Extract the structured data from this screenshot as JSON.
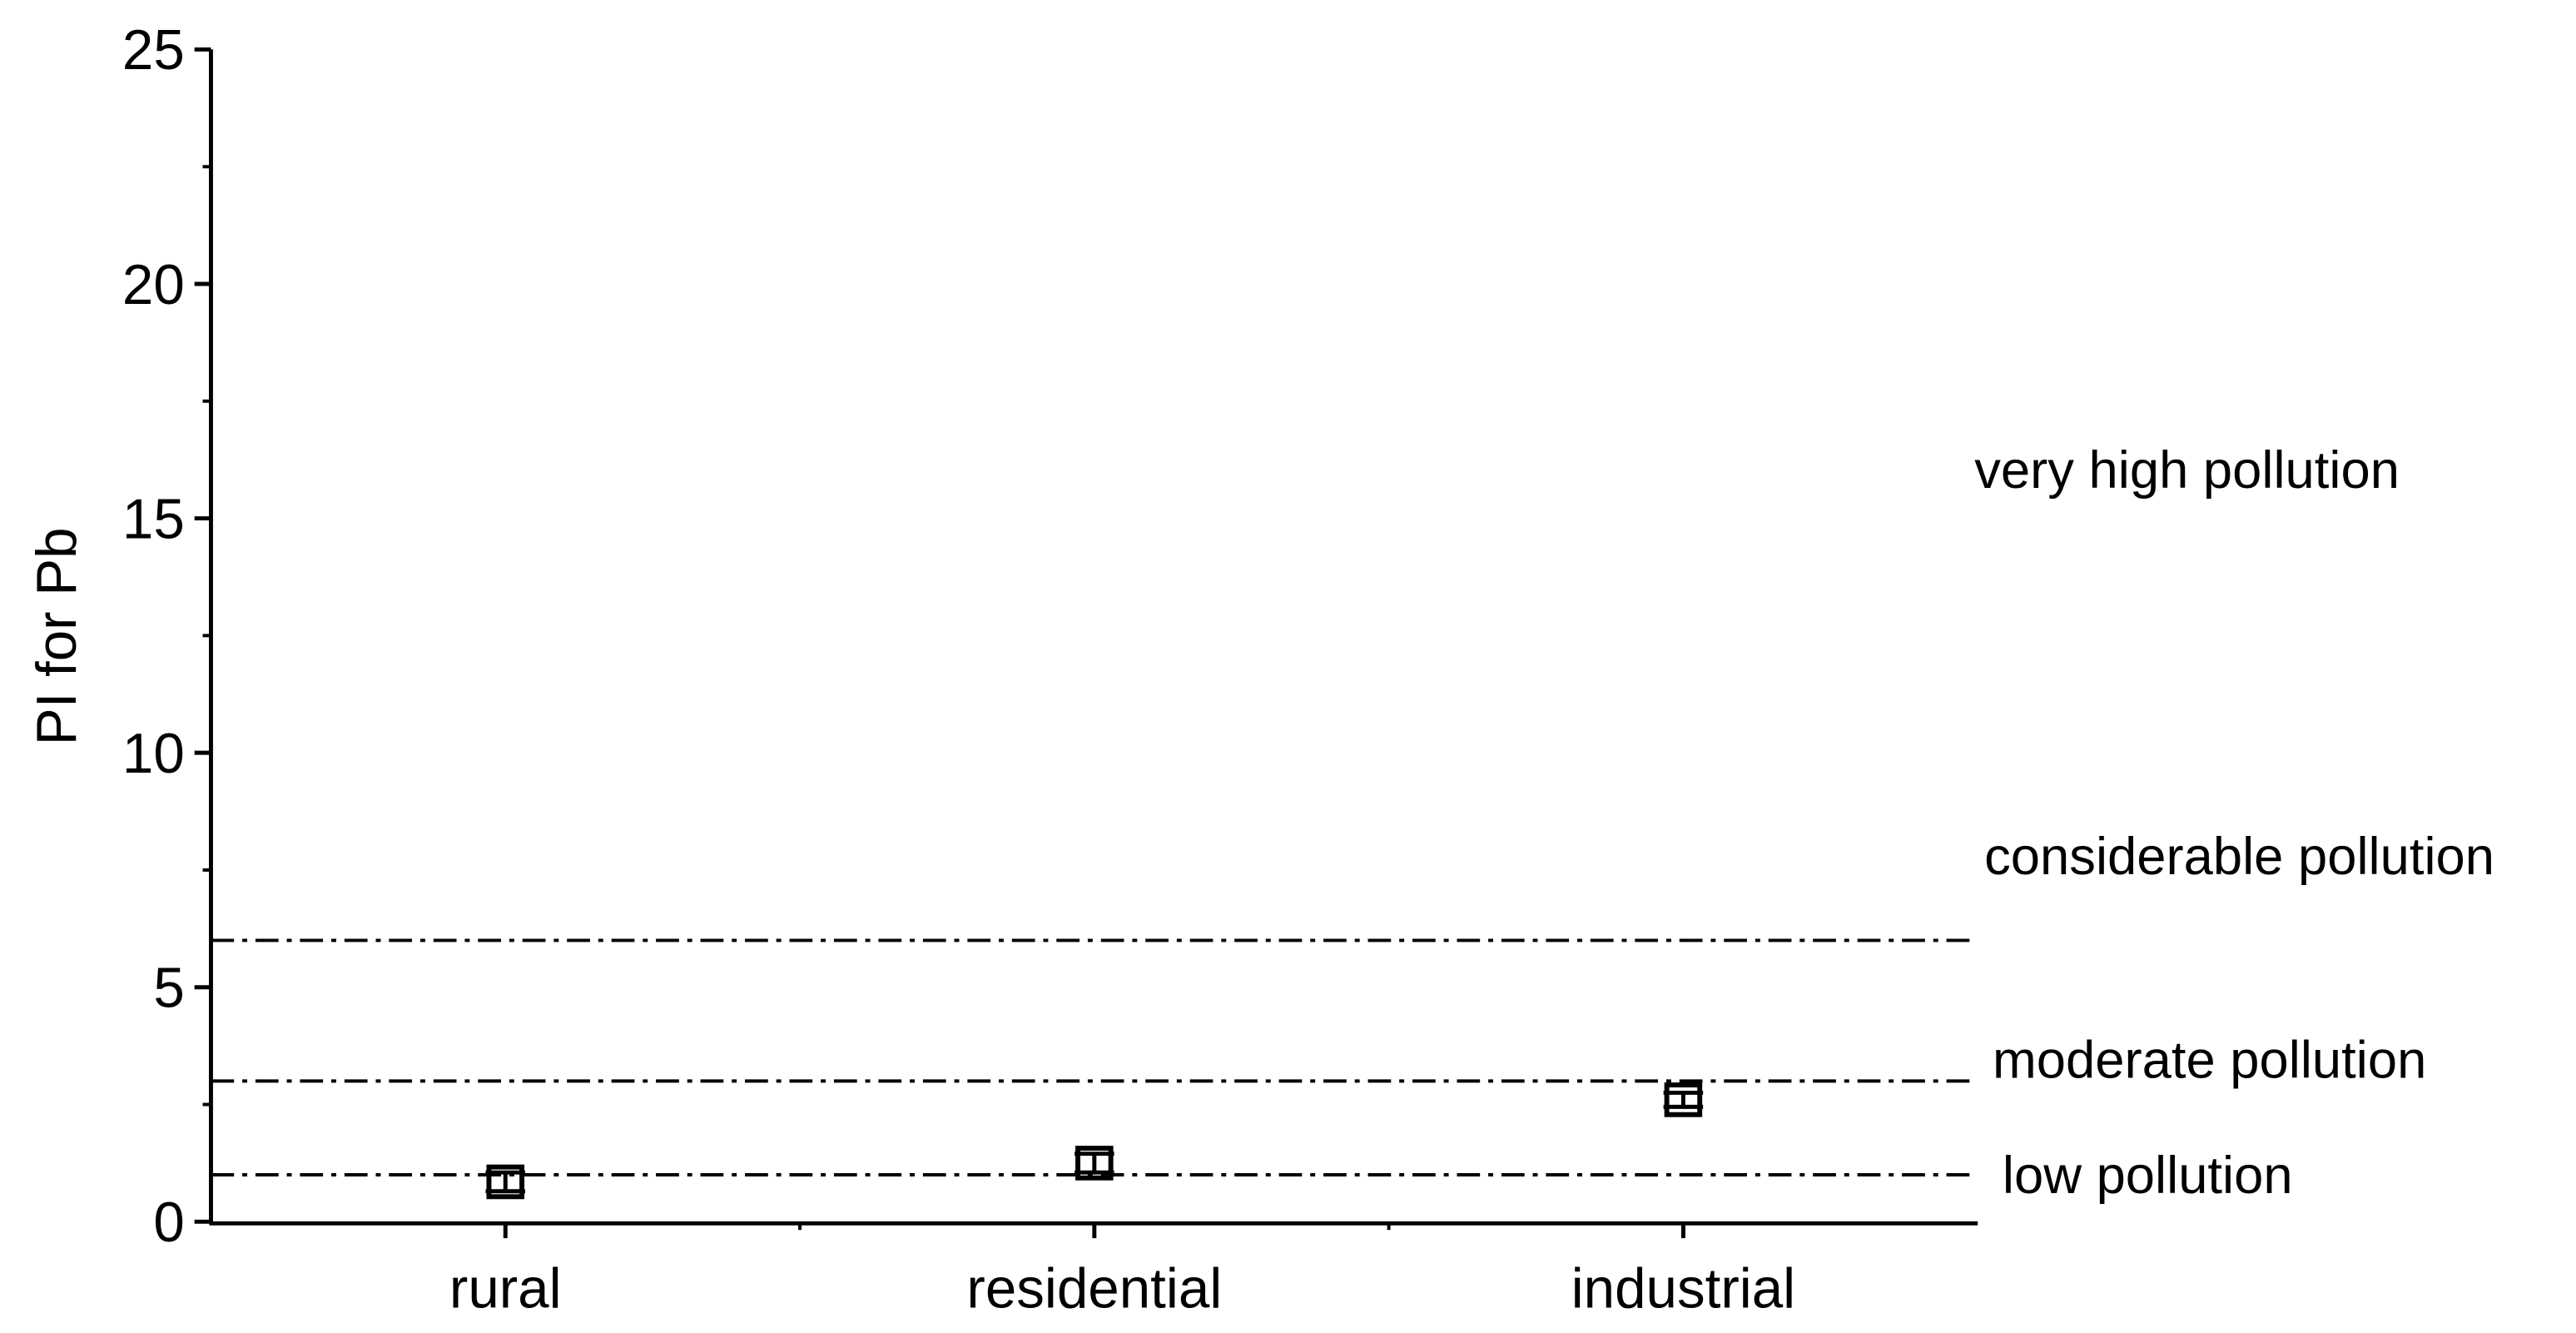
{
  "chart_data": {
    "type": "scatter",
    "y_label": "PI for Pb",
    "categories": [
      "rural",
      "residential",
      "industrial"
    ],
    "values": [
      0.85,
      1.25,
      2.6
    ],
    "errors": [
      0.2,
      0.2,
      0.15
    ],
    "color": "#000000",
    "ylim": [
      0,
      25
    ],
    "yticks": [
      0,
      5,
      10,
      15,
      20,
      25
    ],
    "thresholds": [
      1,
      3,
      6
    ],
    "zone_labels": [
      "low pollution",
      "moderate pollution",
      "considerable pollution",
      "very high pollution"
    ]
  }
}
